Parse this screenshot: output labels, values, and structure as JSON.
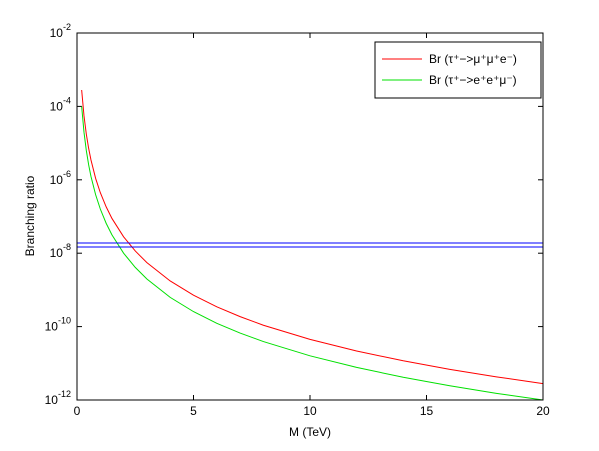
{
  "chart_data": {
    "type": "line",
    "xlabel": "M (TeV)",
    "ylabel": "Branching ratio",
    "xlim": [
      0,
      20
    ],
    "xticks": [
      0,
      5,
      10,
      15,
      20
    ],
    "yscale": "log",
    "ylim": [
      1e-12,
      0.01
    ],
    "yticks": [
      {
        "value": 1e-12,
        "label": "10",
        "exponent": "-12"
      },
      {
        "value": 1e-10,
        "label": "10",
        "exponent": "-10"
      },
      {
        "value": 1e-08,
        "label": "10",
        "exponent": "-8"
      },
      {
        "value": 1e-06,
        "label": "10",
        "exponent": "-6"
      },
      {
        "value": 0.0001,
        "label": "10",
        "exponent": "-4"
      },
      {
        "value": 0.01,
        "label": "10",
        "exponent": "-2"
      }
    ],
    "legend": "upper right",
    "series": [
      {
        "name": "Br (τ⁺−>μ⁺μ⁺e⁻)",
        "color": "#ff0000",
        "x": [
          0.2,
          0.3,
          0.4,
          0.5,
          0.6,
          0.8,
          1,
          1.25,
          1.5,
          2,
          2.5,
          3,
          4,
          5,
          6,
          7,
          8,
          10,
          12,
          14,
          16,
          18,
          20
        ],
        "values": [
          0.00028,
          5.53e-05,
          1.75e-05,
          7.17e-06,
          3.46e-06,
          1.09e-06,
          4.48e-07,
          1.84e-07,
          8.85e-08,
          2.8e-08,
          1.15e-08,
          5.53e-09,
          1.75e-09,
          7.17e-10,
          3.46e-10,
          1.87e-10,
          1.09e-10,
          4.48e-11,
          2.16e-11,
          1.17e-11,
          6.84e-12,
          4.27e-12,
          2.8e-12
        ]
      },
      {
        "name": "Br (τ⁺−>e⁺e⁺μ⁻)",
        "color": "#00e000",
        "x": [
          0.2,
          0.3,
          0.4,
          0.5,
          0.6,
          0.8,
          1,
          1.25,
          1.5,
          2,
          2.5,
          3,
          4,
          5,
          6,
          7,
          8,
          10,
          12,
          14,
          16,
          18,
          20
        ],
        "values": [
          0.0001,
          1.98e-05,
          6.25e-06,
          2.56e-06,
          1.23e-06,
          3.91e-07,
          1.6e-07,
          6.55e-08,
          3.16e-08,
          1e-08,
          4.1e-09,
          1.98e-09,
          6.25e-10,
          2.56e-10,
          1.23e-10,
          6.66e-11,
          3.91e-11,
          1.6e-11,
          7.72e-12,
          4.16e-12,
          2.44e-12,
          1.52e-12,
          1e-12
        ]
      },
      {
        "color": "#0000ff",
        "x": [
          0,
          20
        ],
        "values": [
          1.9e-08,
          1.9e-08
        ]
      },
      {
        "color": "#0000ff",
        "x": [
          0,
          20
        ],
        "values": [
          1.48e-08,
          1.48e-08
        ]
      }
    ]
  }
}
